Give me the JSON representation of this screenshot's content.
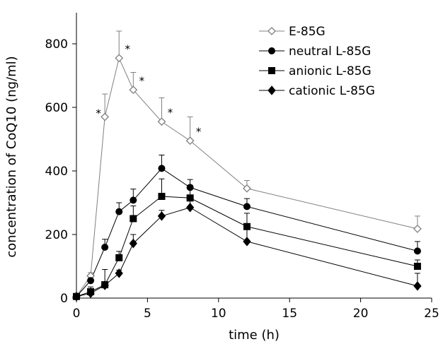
{
  "chart_data": {
    "type": "line",
    "title": "",
    "xlabel": "time (h)",
    "ylabel": "concentration of CoQ10 (ng/ml)",
    "xlim": [
      0,
      25
    ],
    "ylim": [
      0,
      800
    ],
    "xticks": [
      0,
      5,
      10,
      15,
      20,
      25
    ],
    "yticks": [
      0,
      200,
      400,
      600,
      800
    ],
    "grid": false,
    "legend_position": "top-right",
    "x": [
      0,
      1,
      2,
      3,
      4,
      6,
      8,
      12,
      24
    ],
    "series": [
      {
        "name": "E-85G",
        "marker": "open-diamond",
        "color": "#808080",
        "values": [
          5,
          70,
          570,
          755,
          655,
          555,
          495,
          345,
          218
        ],
        "errors": [
          5,
          10,
          72,
          85,
          55,
          75,
          75,
          25,
          40
        ]
      },
      {
        "name": "neutral L-85G",
        "marker": "filled-circle",
        "color": "#000000",
        "values": [
          5,
          55,
          160,
          272,
          308,
          408,
          348,
          288,
          148
        ],
        "errors": [
          3,
          10,
          25,
          28,
          35,
          42,
          25,
          25,
          30
        ]
      },
      {
        "name": "anionic L-85G",
        "marker": "filled-square",
        "color": "#000000",
        "values": [
          5,
          20,
          42,
          127,
          250,
          320,
          315,
          225,
          100
        ],
        "errors": [
          3,
          15,
          48,
          20,
          40,
          55,
          40,
          42,
          20
        ]
      },
      {
        "name": "cationic L-85G",
        "marker": "filled-diamond",
        "color": "#000000",
        "values": [
          5,
          15,
          40,
          78,
          172,
          258,
          285,
          178,
          38
        ],
        "errors": [
          3,
          8,
          10,
          10,
          28,
          18,
          22,
          48,
          40
        ]
      }
    ],
    "annotations": [
      {
        "text": "*",
        "x": 2
      },
      {
        "text": "*",
        "x": 3
      },
      {
        "text": "*",
        "x": 4
      },
      {
        "text": "*",
        "x": 6
      },
      {
        "text": "*",
        "x": 8
      }
    ]
  }
}
